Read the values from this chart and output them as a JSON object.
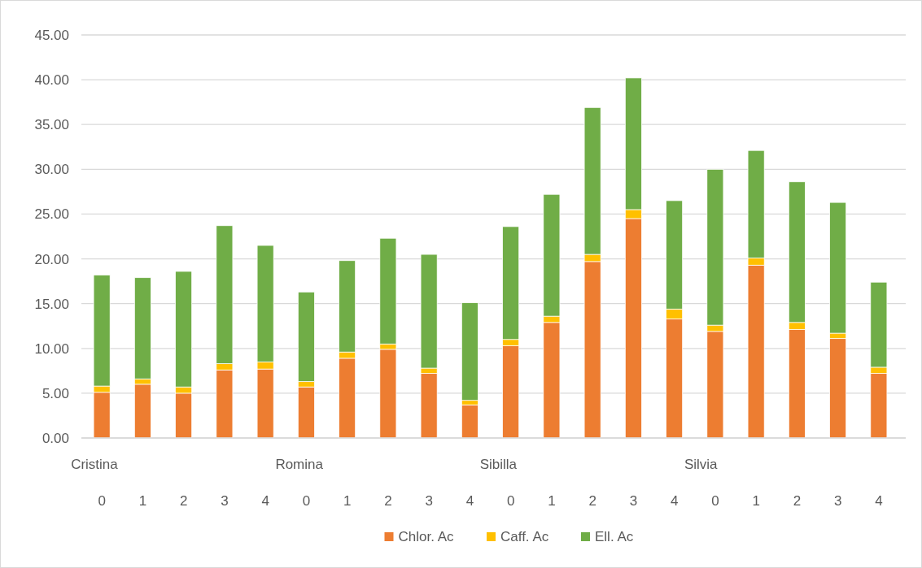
{
  "chart_data": {
    "type": "bar",
    "stacked": true,
    "categories": [
      "0",
      "1",
      "2",
      "3",
      "4",
      "0",
      "1",
      "2",
      "3",
      "4",
      "0",
      "1",
      "2",
      "3",
      "4",
      "0",
      "1",
      "2",
      "3",
      "4"
    ],
    "annotations": [
      "Cristina",
      "Romina",
      "Sibilla",
      "Silvia"
    ],
    "series": [
      {
        "name": "Chlor. Ac",
        "color": "#ed7d31",
        "values": [
          5.1,
          6.0,
          5.0,
          7.6,
          7.7,
          5.7,
          8.9,
          9.9,
          7.2,
          3.7,
          10.3,
          12.9,
          19.7,
          24.5,
          13.3,
          11.9,
          19.3,
          12.1,
          11.1,
          7.2
        ]
      },
      {
        "name": "Caff. Ac",
        "color": "#ffc000",
        "values": [
          0.7,
          0.6,
          0.7,
          0.7,
          0.8,
          0.6,
          0.7,
          0.6,
          0.6,
          0.5,
          0.7,
          0.7,
          0.8,
          1.0,
          1.1,
          0.7,
          0.8,
          0.8,
          0.6,
          0.7
        ]
      },
      {
        "name": "Ell. Ac",
        "color": "#70ad47",
        "values": [
          12.4,
          11.3,
          12.9,
          15.4,
          13.0,
          10.0,
          10.2,
          11.8,
          12.7,
          10.9,
          12.6,
          13.6,
          16.4,
          14.7,
          12.1,
          17.4,
          12.0,
          15.7,
          14.6,
          9.5
        ]
      }
    ],
    "ylim": [
      0,
      45
    ],
    "yticks": [
      {
        "value": 0,
        "label": "0.00"
      },
      {
        "value": 5,
        "label": "5.00"
      },
      {
        "value": 10,
        "label": "10.00"
      },
      {
        "value": 15,
        "label": "15.00"
      },
      {
        "value": 20,
        "label": "20.00"
      },
      {
        "value": 25,
        "label": "25.00"
      },
      {
        "value": 30,
        "label": "30.00"
      },
      {
        "value": 35,
        "label": "35.00"
      },
      {
        "value": 40,
        "label": "40.00"
      },
      {
        "value": 45,
        "label": "45.00"
      }
    ],
    "grid": "y",
    "legend": "bottom"
  }
}
